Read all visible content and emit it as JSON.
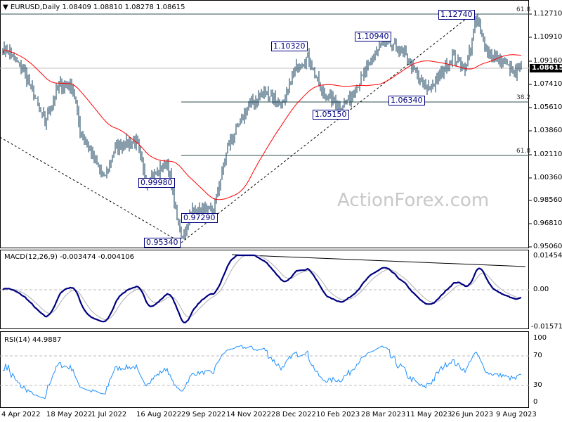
{
  "header": {
    "symbol_title": "EURUSD,Daily",
    "ohlc": "1.08409 1.08810 1.08278 1.08615"
  },
  "watermark": "ActionForex.com",
  "chart_data": [
    {
      "type": "ohlc-bar",
      "title": "EURUSD,Daily",
      "ylim": [
        0.9506,
        1.1271
      ],
      "price_ticks": [
        "1.12710",
        "1.10910",
        "1.09160",
        "1.07410",
        "1.05610",
        "1.03860",
        "1.02110",
        "1.00360",
        "0.98560",
        "0.96810",
        "0.95060"
      ],
      "current_price": "1.08615",
      "date_ticks": [
        "4 Apr 2022",
        "18 May 2022",
        "1 Jul 2022",
        "16 Aug 2022",
        "29 Sep 2022",
        "14 Nov 2022",
        "28 Dec 2022",
        "10 Feb 2023",
        "28 Mar 2023",
        "11 May 2023",
        "26 Jun 2023",
        "9 Aug 2023"
      ],
      "close_waypoints": [
        [
          0,
          1.1
        ],
        [
          2,
          1.1005
        ],
        [
          15,
          1.0845
        ],
        [
          30,
          1.0445
        ],
        [
          40,
          1.0738
        ],
        [
          50,
          1.071
        ],
        [
          55,
          1.039
        ],
        [
          72,
          1.002
        ],
        [
          80,
          1.026
        ],
        [
          95,
          1.031
        ],
        [
          102,
          0.999
        ],
        [
          117,
          1.015
        ],
        [
          127,
          0.9565
        ],
        [
          135,
          0.978
        ],
        [
          150,
          0.978
        ],
        [
          160,
          1.026
        ],
        [
          175,
          1.058
        ],
        [
          187,
          1.068
        ],
        [
          200,
          1.058
        ],
        [
          207,
          1.084
        ],
        [
          217,
          1.095
        ],
        [
          227,
          1.068
        ],
        [
          240,
          1.058
        ],
        [
          247,
          1.063
        ],
        [
          260,
          1.087
        ],
        [
          270,
          1.106
        ],
        [
          285,
          1.098
        ],
        [
          300,
          1.071
        ],
        [
          307,
          1.074
        ],
        [
          320,
          1.095
        ],
        [
          330,
          1.087
        ],
        [
          337,
          1.124
        ],
        [
          345,
          1.098
        ],
        [
          355,
          1.092
        ],
        [
          365,
          1.0818
        ],
        [
          369,
          1.0862
        ]
      ],
      "moving_average": {
        "color": "#ff0000"
      },
      "pivot_labels": [
        "1.12740",
        "1.10940",
        "1.10320",
        "1.06340",
        "1.05150",
        "0.99980",
        "0.97290",
        "0.95340"
      ],
      "fib_levels": [
        {
          "label": "61.8",
          "price": 1.1271
        },
        {
          "label": "38.2",
          "price": 1.0603
        },
        {
          "label": "61.8",
          "price": 1.0211
        }
      ]
    },
    {
      "type": "line",
      "title": "MACD(12,26,9) -0.003474 -0.004106",
      "ylim": [
        -0.015712,
        0.014549
      ],
      "ticks": [
        "0.014549",
        "0.00",
        "-0.015712"
      ],
      "series": [
        {
          "name": "MACD",
          "color": "#000080"
        },
        {
          "name": "Signal",
          "color": "#b0b0b0"
        }
      ]
    },
    {
      "type": "line",
      "title": "RSI(14) 44.9887",
      "ylim": [
        0,
        100
      ],
      "ticks": [
        "100",
        "70",
        "30",
        "0"
      ],
      "series": [
        {
          "name": "RSI",
          "color": "#1e90ff"
        }
      ]
    }
  ]
}
